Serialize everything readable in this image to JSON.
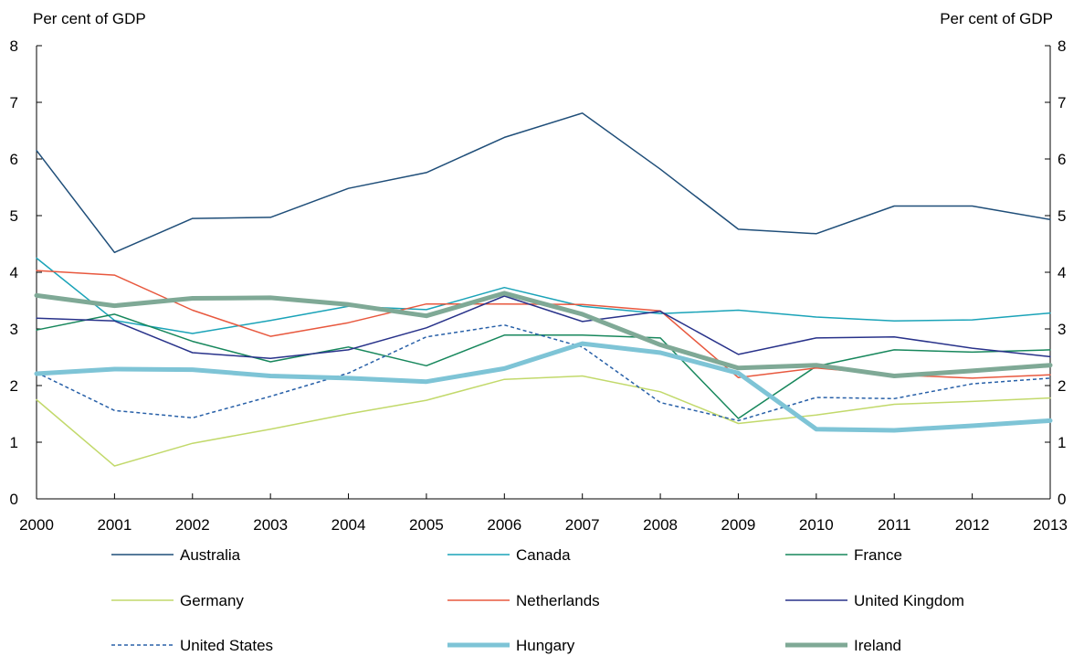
{
  "chart_data": {
    "type": "line",
    "y_unit_left": "Per cent of GDP",
    "y_unit_right": "Per cent of GDP",
    "x": [
      "2000",
      "2001",
      "2002",
      "2003",
      "2004",
      "2005",
      "2006",
      "2007",
      "2008",
      "2009",
      "2010",
      "2011",
      "2012",
      "2013"
    ],
    "ylim": [
      0,
      8
    ],
    "yticks": [
      0,
      1,
      2,
      3,
      4,
      5,
      6,
      7,
      8
    ],
    "grid": false,
    "legend_placement": "bottom",
    "series": [
      {
        "name": "Australia",
        "color": "#1f4e79",
        "style": "solid",
        "width": "thin",
        "values": [
          6.15,
          4.35,
          4.95,
          4.97,
          5.48,
          5.76,
          6.38,
          6.81,
          5.82,
          4.76,
          4.68,
          5.17,
          5.17,
          4.93
        ]
      },
      {
        "name": "Canada",
        "color": "#1aa3b8",
        "style": "solid",
        "width": "thin",
        "values": [
          4.25,
          3.15,
          2.92,
          3.15,
          3.4,
          3.34,
          3.73,
          3.4,
          3.27,
          3.33,
          3.21,
          3.14,
          3.16,
          3.28
        ]
      },
      {
        "name": "France",
        "color": "#17875c",
        "style": "solid",
        "width": "thin",
        "values": [
          2.98,
          3.26,
          2.78,
          2.42,
          2.68,
          2.35,
          2.89,
          2.89,
          2.84,
          1.42,
          2.34,
          2.63,
          2.59,
          2.63
        ]
      },
      {
        "name": "Germany",
        "color": "#c2d96b",
        "style": "solid",
        "width": "thin",
        "values": [
          1.75,
          0.58,
          0.98,
          1.23,
          1.5,
          1.74,
          2.11,
          2.17,
          1.89,
          1.33,
          1.48,
          1.67,
          1.72,
          1.78
        ]
      },
      {
        "name": "Netherlands",
        "color": "#e8583e",
        "style": "solid",
        "width": "thin",
        "values": [
          4.03,
          3.95,
          3.33,
          2.87,
          3.11,
          3.44,
          3.44,
          3.43,
          3.32,
          2.14,
          2.31,
          2.19,
          2.13,
          2.19
        ]
      },
      {
        "name": "United Kingdom",
        "color": "#28328a",
        "style": "solid",
        "width": "thin",
        "values": [
          3.19,
          3.14,
          2.58,
          2.48,
          2.63,
          3.02,
          3.58,
          3.13,
          3.31,
          2.55,
          2.84,
          2.86,
          2.66,
          2.51
        ]
      },
      {
        "name": "United States",
        "color": "#2860a8",
        "style": "dashed",
        "width": "thin",
        "values": [
          2.23,
          1.56,
          1.43,
          1.81,
          2.22,
          2.86,
          3.07,
          2.68,
          1.7,
          1.38,
          1.79,
          1.77,
          2.03,
          2.13
        ]
      },
      {
        "name": "Hungary",
        "color": "#7ec4d6",
        "style": "solid",
        "width": "thick",
        "values": [
          2.21,
          2.29,
          2.28,
          2.17,
          2.13,
          2.07,
          2.3,
          2.74,
          2.58,
          2.22,
          1.23,
          1.21,
          1.29,
          1.38
        ]
      },
      {
        "name": "Ireland",
        "color": "#7fa996",
        "style": "solid",
        "width": "thick",
        "values": [
          3.59,
          3.41,
          3.54,
          3.55,
          3.43,
          3.23,
          3.63,
          3.26,
          2.72,
          2.31,
          2.36,
          2.17,
          2.26,
          2.36
        ]
      }
    ]
  }
}
